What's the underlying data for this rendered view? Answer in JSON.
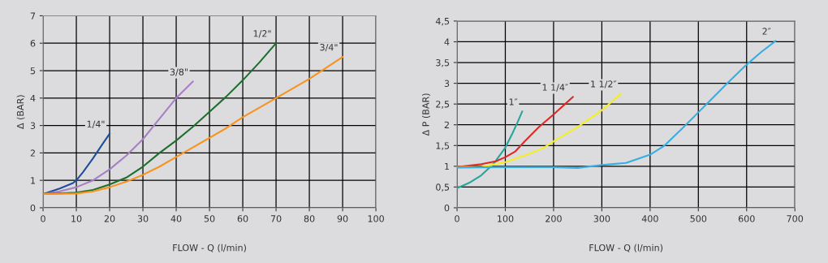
{
  "chart_data": [
    {
      "type": "line",
      "xlabel": "FLOW - Q (l/min)",
      "ylabel": "Δ (BAR)",
      "xlim": [
        0,
        100
      ],
      "xticks": [
        0,
        10,
        20,
        30,
        40,
        50,
        60,
        70,
        80,
        90,
        100
      ],
      "ylim": [
        0,
        7
      ],
      "yticks": [
        0,
        1,
        2,
        3,
        4,
        5,
        6,
        7
      ],
      "grid": true,
      "legend": false,
      "series": [
        {
          "name": "1/4\"",
          "color": "#1f4e9c",
          "x": [
            0,
            5,
            9,
            10,
            12,
            15,
            18,
            20
          ],
          "values": [
            0.5,
            0.7,
            0.9,
            1.0,
            1.3,
            1.8,
            2.35,
            2.7
          ]
        },
        {
          "name": "3/8\"",
          "color": "#a77fc4",
          "x": [
            0,
            5,
            10,
            15,
            20,
            25,
            30,
            35,
            40,
            45
          ],
          "values": [
            0.5,
            0.6,
            0.75,
            1.0,
            1.4,
            1.9,
            2.5,
            3.25,
            4.0,
            4.6
          ]
        },
        {
          "name": "1/2\"",
          "color": "#1e6e2e",
          "x": [
            0,
            10,
            15,
            20,
            25,
            30,
            35,
            40,
            45,
            50,
            55,
            60,
            65,
            70
          ],
          "values": [
            0.5,
            0.55,
            0.65,
            0.85,
            1.1,
            1.5,
            2.0,
            2.45,
            2.95,
            3.5,
            4.05,
            4.65,
            5.3,
            6.0
          ]
        },
        {
          "name": "3/4\"",
          "color": "#f7931e",
          "x": [
            0,
            10,
            15,
            20,
            25,
            30,
            35,
            40,
            45,
            50,
            55,
            60,
            70,
            80,
            90
          ],
          "values": [
            0.5,
            0.52,
            0.6,
            0.75,
            0.95,
            1.2,
            1.5,
            1.85,
            2.2,
            2.55,
            2.9,
            3.3,
            4.0,
            4.7,
            5.5
          ]
        }
      ]
    },
    {
      "type": "line",
      "xlabel": "FLOW - Q (l/min)",
      "ylabel": "Δ P (BAR)",
      "xlim": [
        0,
        700
      ],
      "xticks": [
        0,
        100,
        200,
        300,
        400,
        500,
        600,
        700
      ],
      "ylim": [
        0,
        4.5
      ],
      "yticks": [
        0,
        {
          "value": 0.5,
          "label": "0,5"
        },
        1,
        {
          "value": 1.5,
          "label": "1,5"
        },
        2,
        {
          "value": 2.5,
          "label": "2,5"
        },
        3,
        {
          "value": 3.5,
          "label": "3,5"
        },
        4,
        {
          "value": 4.5,
          "label": "4,5"
        }
      ],
      "grid": true,
      "legend": false,
      "series": [
        {
          "name": "1″",
          "color": "#26a69a",
          "x": [
            0,
            25,
            50,
            75,
            100,
            115,
            125,
            135
          ],
          "values": [
            0.47,
            0.6,
            0.78,
            1.05,
            1.45,
            1.8,
            2.05,
            2.32
          ]
        },
        {
          "name": "1 1/4″",
          "color": "#e52520",
          "x": [
            0,
            50,
            80,
            100,
            120,
            140,
            170,
            200,
            240
          ],
          "values": [
            0.98,
            1.05,
            1.12,
            1.22,
            1.35,
            1.6,
            1.95,
            2.25,
            2.67
          ]
        },
        {
          "name": "1 1/2″",
          "color": "#f5ee20",
          "x": [
            0,
            50,
            100,
            150,
            180,
            200,
            250,
            300,
            340
          ],
          "values": [
            0.98,
            0.98,
            1.1,
            1.3,
            1.45,
            1.6,
            1.95,
            2.35,
            2.75
          ]
        },
        {
          "name": "2″",
          "color": "#36aee2",
          "x": [
            0,
            100,
            200,
            250,
            300,
            350,
            400,
            430,
            470,
            500,
            530,
            560,
            600,
            630,
            660
          ],
          "values": [
            0.97,
            0.98,
            0.98,
            0.96,
            1.03,
            1.08,
            1.28,
            1.5,
            1.95,
            2.3,
            2.65,
            3.0,
            3.45,
            3.75,
            4.02
          ]
        }
      ]
    }
  ]
}
